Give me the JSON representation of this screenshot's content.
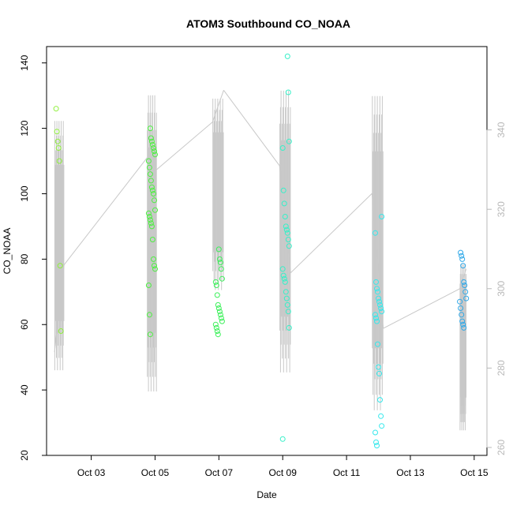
{
  "chart_data": {
    "type": "scatter",
    "title": "ATOM3 Southbound CO_NOAA",
    "xlabel": "Date",
    "ylabel": "CO_NOAA",
    "x_ticks": [
      {
        "label": "Oct 03",
        "day": 3
      },
      {
        "label": "Oct 05",
        "day": 5
      },
      {
        "label": "Oct 07",
        "day": 7
      },
      {
        "label": "Oct 09",
        "day": 9
      },
      {
        "label": "Oct 11",
        "day": 11
      },
      {
        "label": "Oct 13",
        "day": 13
      },
      {
        "label": "Oct 15",
        "day": 15
      }
    ],
    "xlim": [
      1.6,
      15.4
    ],
    "ylim": [
      20,
      145
    ],
    "y_ticks": [
      20,
      40,
      60,
      80,
      100,
      120,
      140
    ],
    "right_axis": {
      "ylim": [
        258,
        361
      ],
      "ticks": [
        260,
        280,
        300,
        320,
        340
      ],
      "color": "#b8b8b8"
    },
    "points": [
      {
        "day": 2.0,
        "values": [
          126,
          119,
          116,
          114,
          110,
          78,
          58
        ],
        "color": "#8ff03c"
      },
      {
        "day": 4.9,
        "values": [
          120,
          117,
          116,
          115,
          114,
          113,
          112,
          110,
          108,
          106,
          104,
          102,
          101,
          100,
          98,
          95,
          94,
          93,
          92,
          91,
          90,
          86,
          80,
          78,
          77,
          72,
          63,
          57
        ],
        "color": "#4cf040"
      },
      {
        "day": 7.0,
        "values": [
          83,
          80,
          79,
          77,
          74,
          73,
          72,
          69,
          66,
          65,
          64,
          63,
          62,
          61,
          60,
          59,
          58,
          57
        ],
        "color": "#3cf05a"
      },
      {
        "day": 9.1,
        "values": [
          142,
          131,
          116,
          114,
          101,
          97,
          93,
          90,
          89,
          88,
          86,
          84,
          77,
          75,
          74,
          73,
          70,
          68,
          66,
          64,
          59,
          25
        ],
        "color": "#36f0c8"
      },
      {
        "day": 12.0,
        "values": [
          93,
          88,
          73,
          71,
          70,
          68,
          67,
          66,
          65,
          64,
          63,
          62,
          61,
          54,
          47,
          45,
          37,
          32,
          29,
          27,
          24,
          23
        ],
        "color": "#35e8ec"
      },
      {
        "day": 14.65,
        "values": [
          82,
          81,
          80,
          78,
          73,
          72,
          70,
          68,
          67,
          65,
          63,
          61,
          60,
          59
        ],
        "color": "#2fa8e8"
      }
    ],
    "secondary_line": {
      "color": "#c8c8c8",
      "segments": [
        {
          "start_day": 1.85,
          "end_day": 2.15,
          "from_value": 284,
          "to_value": 306,
          "range": [
            276,
            345
          ]
        },
        {
          "start_day": 2.15,
          "end_day": 4.75,
          "from_value": 306,
          "to_value": 333,
          "range": [
            0,
            0
          ]
        },
        {
          "start_day": 4.75,
          "end_day": 5.05,
          "from_value": 333,
          "to_value": 330,
          "range": [
            270,
            352
          ]
        },
        {
          "start_day": 5.05,
          "end_day": 6.8,
          "from_value": 330,
          "to_value": 342,
          "range": [
            0,
            0
          ]
        },
        {
          "start_day": 6.8,
          "end_day": 7.15,
          "from_value": 342,
          "to_value": 350,
          "range": [
            297,
            350
          ]
        },
        {
          "start_day": 7.15,
          "end_day": 8.9,
          "from_value": 350,
          "to_value": 331,
          "range": [
            0,
            0
          ]
        },
        {
          "start_day": 8.9,
          "end_day": 9.25,
          "from_value": 331,
          "to_value": 304,
          "range": [
            275,
            353
          ]
        },
        {
          "start_day": 9.25,
          "end_day": 11.8,
          "from_value": 304,
          "to_value": 324,
          "range": [
            0,
            0
          ]
        },
        {
          "start_day": 11.8,
          "end_day": 12.15,
          "from_value": 324,
          "to_value": 290,
          "range": [
            265,
            352
          ]
        },
        {
          "start_day": 12.15,
          "end_day": 14.55,
          "from_value": 290,
          "to_value": 300,
          "range": [
            0,
            0
          ]
        },
        {
          "start_day": 14.55,
          "end_day": 14.75,
          "from_value": 300,
          "to_value": 305,
          "range": [
            262,
            308
          ]
        }
      ]
    }
  }
}
